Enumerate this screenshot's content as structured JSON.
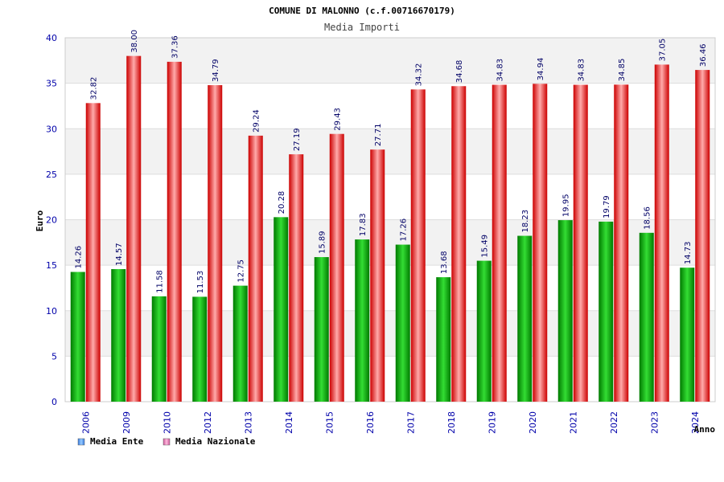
{
  "chart_data": {
    "type": "bar",
    "title": "COMUNE DI MALONNO (c.f.00716670179)",
    "subtitle": "Media Importi",
    "xlabel": "Anno",
    "ylabel": "Euro",
    "ylim": [
      0,
      40
    ],
    "yticks": [
      "0",
      "5",
      "10",
      "15",
      "20",
      "25",
      "30",
      "35",
      "40"
    ],
    "categories": [
      "2006",
      "2009",
      "2010",
      "2012",
      "2013",
      "2014",
      "2015",
      "2016",
      "2017",
      "2018",
      "2019",
      "2020",
      "2021",
      "2022",
      "2023",
      "2024"
    ],
    "series": [
      {
        "name": "Media Ente",
        "color": "#00aa00",
        "values": [
          14.26,
          14.57,
          11.58,
          11.53,
          12.75,
          20.28,
          15.89,
          17.83,
          17.26,
          13.68,
          15.49,
          18.23,
          19.95,
          19.79,
          18.56,
          14.73
        ],
        "labels": [
          "14.26",
          "14.57",
          "11.58",
          "11.53",
          "12.75",
          "20.28",
          "15.89",
          "17.83",
          "17.26",
          "13.68",
          "15.49",
          "18.23",
          "19.95",
          "19.79",
          "18.56",
          "14.73"
        ]
      },
      {
        "name": "Media Nazionale",
        "color": "#ee0000",
        "values": [
          32.82,
          38.0,
          37.36,
          34.79,
          29.24,
          27.19,
          29.43,
          27.71,
          34.32,
          34.68,
          34.83,
          34.94,
          34.83,
          34.85,
          37.05,
          36.46
        ],
        "labels": [
          "32.82",
          "38.00",
          "37.36",
          "34.79",
          "29.24",
          "27.19",
          "29.43",
          "27.71",
          "34.32",
          "34.68",
          "34.83",
          "34.94",
          "34.83",
          "34.85",
          "37.05",
          "36.46"
        ]
      }
    ],
    "legend": {
      "position": "bottom-left",
      "items": [
        {
          "label": "Media Ente",
          "color": "#5599ee"
        },
        {
          "label": "Media Nazionale",
          "color": "#dd77aa"
        }
      ]
    },
    "grid": true,
    "band_colors": [
      "#ffffff",
      "#f2f2f2"
    ]
  }
}
